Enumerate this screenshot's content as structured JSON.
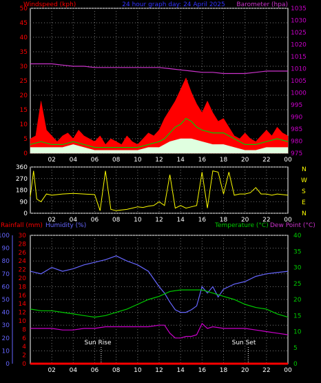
{
  "header": {
    "left": "Windspeed (kph)",
    "center": "24 hour graph day:  24 April 2025",
    "right": "Barometer (hpa)"
  },
  "lower_header": {
    "left1": "Rainfall (mm)",
    "left2": "Humidity (%)",
    "right1": "Temperature (°C)",
    "right2": "Dew Point (°C)"
  },
  "wind_dir_labels": [
    "N",
    "W",
    "S",
    "E",
    "N"
  ],
  "colors": {
    "wind": "#ff0000",
    "gust_avg": "#00cc00",
    "wind_avg": "#e0ffe0",
    "barometer": "#cc33cc",
    "direction": "#ffff00",
    "rain": "#ff0000",
    "humidity": "#6666ff",
    "temperature": "#00cc00",
    "dewpoint": "#cc00cc",
    "axis_left": "#ff0000",
    "axis_right": "#cc00cc",
    "frame": "#ffffff",
    "grid": "#777777"
  },
  "annotations": {
    "sunrise": "Sun Rise",
    "sunset": "Sun Set",
    "sunrise_hour": 6.6,
    "sunset_hour": 20.3
  },
  "chart_data": [
    {
      "type": "area",
      "title": "24 hour graph day:  24 April 2025",
      "ylabel_left": "Windspeed (kph)",
      "ylabel_right": "Barometer (hpa)",
      "x_ticks": [
        "02",
        "04",
        "06",
        "08",
        "10",
        "12",
        "14",
        "16",
        "18",
        "20",
        "22",
        "00"
      ],
      "ylim_left": [
        0,
        50
      ],
      "yticks_left": [
        0,
        5,
        10,
        15,
        20,
        25,
        30,
        35,
        40,
        45,
        50
      ],
      "ylim_right": [
        975,
        1035
      ],
      "yticks_right": [
        975,
        980,
        985,
        990,
        995,
        1000,
        1005,
        1010,
        1015,
        1020,
        1025,
        1030,
        1035
      ],
      "grid": true,
      "series": [
        {
          "key": "gust",
          "hours": [
            0,
            0.5,
            1,
            1.5,
            2,
            2.5,
            3,
            3.5,
            4,
            4.5,
            5,
            5.5,
            6,
            6.5,
            7,
            7.5,
            8,
            8.5,
            9,
            9.5,
            10,
            10.5,
            11,
            11.5,
            12,
            12.5,
            13,
            13.5,
            14,
            14.5,
            15,
            15.5,
            16,
            16.5,
            17,
            17.5,
            18,
            18.5,
            19,
            19.5,
            20,
            20.5,
            21,
            21.5,
            22,
            22.5,
            23,
            23.5,
            24
          ],
          "values": [
            5,
            6,
            18,
            8,
            6,
            4,
            6,
            7,
            5,
            8,
            6,
            5,
            4,
            6,
            3,
            5,
            4,
            3,
            6,
            4,
            3,
            5,
            7,
            6,
            8,
            12,
            15,
            18,
            22,
            26,
            21,
            17,
            14,
            18,
            14,
            11,
            12,
            9,
            6,
            5,
            7,
            5,
            4,
            6,
            8,
            6,
            9,
            7,
            6
          ]
        },
        {
          "key": "gust_avg",
          "hours": [
            0,
            1,
            2,
            3,
            4,
            5,
            6,
            7,
            8,
            9,
            10,
            11,
            12,
            12.5,
            13,
            13.5,
            14,
            14.5,
            15,
            15.5,
            16,
            17,
            18,
            19,
            20,
            21,
            22,
            23,
            24
          ],
          "values": [
            3,
            4,
            3,
            3,
            4,
            3,
            2,
            2,
            2,
            2,
            2,
            3,
            4,
            5,
            7,
            9,
            10,
            12,
            11,
            9,
            8,
            7,
            7,
            5,
            3,
            3,
            4,
            5,
            4
          ]
        },
        {
          "key": "wind_avg",
          "hours": [
            0,
            1,
            2,
            3,
            4,
            5,
            6,
            7,
            8,
            9,
            10,
            11,
            12,
            13,
            14,
            15,
            16,
            17,
            18,
            19,
            20,
            21,
            22,
            23,
            24
          ],
          "values": [
            2,
            2,
            2,
            2,
            3,
            2,
            1,
            1,
            1,
            1,
            1,
            2,
            2,
            4,
            5,
            5,
            4,
            3,
            3,
            2,
            1,
            1,
            2,
            2,
            2
          ]
        },
        {
          "key": "barometer",
          "hours": [
            0,
            1,
            2,
            3,
            4,
            5,
            6,
            7,
            8,
            9,
            10,
            11,
            12,
            13,
            14,
            15,
            16,
            17,
            18,
            19,
            20,
            21,
            22,
            23,
            24
          ],
          "values": [
            1012,
            1012,
            1012,
            1011.5,
            1011,
            1011,
            1010.5,
            1010.5,
            1010.5,
            1010.5,
            1010.5,
            1010.5,
            1010.5,
            1010,
            1009.5,
            1009,
            1008.5,
            1008.5,
            1008,
            1008,
            1008,
            1008.5,
            1009,
            1009,
            1009
          ]
        }
      ]
    },
    {
      "type": "scatter",
      "ylabel_right": "N W S E N",
      "ylim": [
        0,
        360
      ],
      "yticks": [
        0,
        90,
        180,
        270,
        360
      ],
      "x_ticks": [
        "02",
        "04",
        "06",
        "08",
        "10",
        "12",
        "14",
        "16",
        "18",
        "20",
        "22",
        "00"
      ],
      "grid": true,
      "series": [
        {
          "key": "direction",
          "hours": [
            0,
            0.3,
            0.6,
            1,
            1.5,
            2,
            2.5,
            3,
            4,
            5,
            6,
            6.5,
            7,
            7.5,
            8,
            8.5,
            9,
            9.5,
            10,
            10.5,
            11,
            11.5,
            12,
            12.5,
            13,
            13.5,
            14,
            14.5,
            15,
            15.5,
            16,
            16.5,
            17,
            17.5,
            18,
            18.5,
            19,
            19.5,
            20,
            20.5,
            21,
            21.5,
            22,
            22.5,
            23,
            23.5,
            24
          ],
          "values": [
            130,
            330,
            110,
            90,
            150,
            140,
            145,
            150,
            155,
            150,
            145,
            20,
            330,
            30,
            20,
            25,
            30,
            40,
            50,
            45,
            55,
            60,
            90,
            60,
            300,
            40,
            60,
            40,
            50,
            60,
            320,
            40,
            330,
            320,
            150,
            320,
            140,
            150,
            150,
            160,
            200,
            150,
            150,
            140,
            150,
            145,
            140
          ]
        }
      ]
    },
    {
      "type": "line",
      "ylabel_left": "Rainfall (mm) / Humidity (%)",
      "ylabel_right": "Temperature (°C) / Dew Point (°C)",
      "x_ticks": [
        "02",
        "04",
        "06",
        "08",
        "10",
        "12",
        "14",
        "16",
        "18",
        "20",
        "22",
        "00"
      ],
      "ylim_left": [
        0,
        100
      ],
      "yticks_humidity": [
        0,
        10,
        20,
        30,
        40,
        50,
        60,
        70,
        80,
        90,
        100
      ],
      "ylim_rain": [
        0,
        30
      ],
      "yticks_rain": [
        0,
        2,
        4,
        6,
        8,
        10,
        12,
        14,
        16,
        18,
        20,
        22,
        24,
        26,
        28,
        30
      ],
      "ylim_right": [
        0,
        40
      ],
      "yticks_right": [
        0,
        5,
        10,
        15,
        20,
        25,
        30,
        35,
        40
      ],
      "grid": true,
      "series": [
        {
          "key": "humidity",
          "hours": [
            0,
            1,
            2,
            3,
            4,
            5,
            6,
            7,
            8,
            9,
            10,
            11,
            12,
            12.5,
            13,
            13.5,
            14,
            14.5,
            15,
            15.5,
            16,
            16.5,
            17,
            17.5,
            18,
            19,
            20,
            21,
            22,
            23,
            24
          ],
          "values": [
            72,
            70,
            75,
            72,
            74,
            77,
            79,
            81,
            84,
            80,
            77,
            72,
            60,
            55,
            48,
            42,
            40,
            40,
            42,
            45,
            60,
            55,
            60,
            52,
            58,
            62,
            64,
            68,
            70,
            71,
            72
          ]
        },
        {
          "key": "temperature",
          "hours": [
            0,
            1,
            2,
            3,
            4,
            5,
            6,
            7,
            8,
            9,
            10,
            11,
            12,
            13,
            14,
            15,
            16,
            17,
            18,
            19,
            20,
            21,
            22,
            23,
            24
          ],
          "values": [
            17,
            16.5,
            16.5,
            16,
            15.5,
            15,
            14.5,
            15,
            16,
            17,
            18.5,
            20,
            21,
            22.5,
            23,
            23,
            23,
            22,
            21,
            20,
            18.5,
            17.5,
            17,
            15.5,
            14.5
          ]
        },
        {
          "key": "dewpoint",
          "hours": [
            0,
            1,
            2,
            3,
            4,
            5,
            6,
            7,
            8,
            9,
            10,
            11,
            12,
            12.5,
            13,
            13.5,
            14,
            14.5,
            15,
            15.5,
            16,
            16.5,
            17,
            18,
            19,
            20,
            21,
            22,
            23,
            24
          ],
          "values": [
            11,
            11,
            11,
            10.5,
            10.5,
            11,
            11,
            11.5,
            11.5,
            11.5,
            11.5,
            11.5,
            12,
            12,
            9.5,
            8,
            8,
            8.5,
            8.5,
            9,
            12.5,
            11,
            11.5,
            11,
            11,
            11,
            10.5,
            10,
            9.5,
            9
          ]
        },
        {
          "key": "rain",
          "hours": [
            0,
            24
          ],
          "values": [
            0,
            0
          ]
        }
      ]
    }
  ]
}
